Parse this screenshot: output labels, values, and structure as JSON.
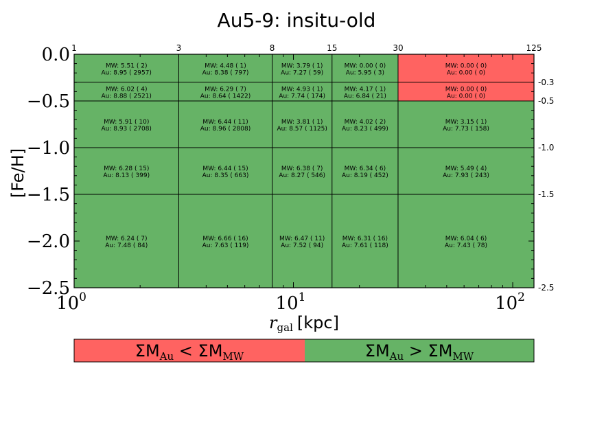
{
  "chart_data": {
    "type": "heatmap",
    "title": "Au5-9:  insitu-old",
    "xlabel_var": "r",
    "xlabel_sub": "gal",
    "xlabel_unit": "[kpc]",
    "ylabel": "[Fe/H]",
    "x_scale": "log",
    "xlim": [
      1,
      125
    ],
    "ylim": [
      -2.5,
      0.0
    ],
    "x_bin_edges": [
      1,
      3,
      8,
      15,
      30,
      125
    ],
    "x_edge_labels": [
      "1",
      "3",
      "8",
      "15",
      "30",
      "125"
    ],
    "y_bin_edges": [
      0.0,
      -0.3,
      -0.5,
      -1.0,
      -1.5,
      -2.5
    ],
    "y_edge_labels": [
      "-0.3",
      "-0.5",
      "-1.0",
      "-1.5",
      "-2.5"
    ],
    "y_ticks": [
      {
        "value": 0.0,
        "label": "0.0"
      },
      {
        "value": -0.5,
        "label": "−0.5"
      },
      {
        "value": -1.0,
        "label": "−1.0"
      },
      {
        "value": -1.5,
        "label": "−1.5"
      },
      {
        "value": -2.0,
        "label": "−2.0"
      },
      {
        "value": -2.5,
        "label": "−2.5"
      }
    ],
    "x_ticks": [
      {
        "value": 1,
        "base": "10",
        "exp": "0"
      },
      {
        "value": 10,
        "base": "10",
        "exp": "1"
      },
      {
        "value": 100,
        "base": "10",
        "exp": "2"
      }
    ],
    "colors": {
      "au_less": "#ff6361",
      "au_greater": "#66b366"
    },
    "cells": [
      [
        {
          "mw": "MW: 5.51 ( 2)",
          "au": "Au: 8.95 ( 2957)",
          "state": "greater"
        },
        {
          "mw": "MW: 4.48 ( 1)",
          "au": "Au: 8.38 ( 797)",
          "state": "greater"
        },
        {
          "mw": "MW: 3.79 ( 1)",
          "au": "Au: 7.27 ( 59)",
          "state": "greater"
        },
        {
          "mw": "MW: 0.00 ( 0)",
          "au": "Au: 5.95 ( 3)",
          "state": "greater"
        },
        {
          "mw": "MW: 0.00 ( 0)",
          "au": "Au: 0.00 ( 0)",
          "state": "less"
        }
      ],
      [
        {
          "mw": "MW: 6.02 ( 4)",
          "au": "Au: 8.88 ( 2521)",
          "state": "greater"
        },
        {
          "mw": "MW: 6.29 ( 7)",
          "au": "Au: 8.64 ( 1422)",
          "state": "greater"
        },
        {
          "mw": "MW: 4.93 ( 1)",
          "au": "Au: 7.74 ( 174)",
          "state": "greater"
        },
        {
          "mw": "MW: 4.17 ( 1)",
          "au": "Au: 6.84 ( 21)",
          "state": "greater"
        },
        {
          "mw": "MW: 0.00 ( 0)",
          "au": "Au: 0.00 ( 0)",
          "state": "less"
        }
      ],
      [
        {
          "mw": "MW: 5.91 ( 10)",
          "au": "Au: 8.93 ( 2708)",
          "state": "greater"
        },
        {
          "mw": "MW: 6.44 ( 11)",
          "au": "Au: 8.96 ( 2808)",
          "state": "greater"
        },
        {
          "mw": "MW: 3.81 ( 1)",
          "au": "Au: 8.57 ( 1125)",
          "state": "greater"
        },
        {
          "mw": "MW: 4.02 ( 2)",
          "au": "Au: 8.23 ( 499)",
          "state": "greater"
        },
        {
          "mw": "MW: 3.15 ( 1)",
          "au": "Au: 7.73 ( 158)",
          "state": "greater"
        }
      ],
      [
        {
          "mw": "MW: 6.28 ( 15)",
          "au": "Au: 8.13 ( 399)",
          "state": "greater"
        },
        {
          "mw": "MW: 6.44 ( 15)",
          "au": "Au: 8.35 ( 663)",
          "state": "greater"
        },
        {
          "mw": "MW: 6.38 ( 7)",
          "au": "Au: 8.27 ( 546)",
          "state": "greater"
        },
        {
          "mw": "MW: 6.34 ( 6)",
          "au": "Au: 8.19 ( 452)",
          "state": "greater"
        },
        {
          "mw": "MW: 5.49 ( 4)",
          "au": "Au: 7.93 ( 243)",
          "state": "greater"
        }
      ],
      [
        {
          "mw": "MW: 6.24 ( 7)",
          "au": "Au: 7.48 ( 84)",
          "state": "greater"
        },
        {
          "mw": "MW: 6.66 ( 16)",
          "au": "Au: 7.63 ( 119)",
          "state": "greater"
        },
        {
          "mw": "MW: 6.47 ( 11)",
          "au": "Au: 7.52 ( 94)",
          "state": "greater"
        },
        {
          "mw": "MW: 6.31 ( 16)",
          "au": "Au: 7.61 ( 118)",
          "state": "greater"
        },
        {
          "mw": "MW: 6.04 ( 6)",
          "au": "Au: 7.43 ( 78)",
          "state": "greater"
        }
      ]
    ],
    "legend": [
      {
        "key": "less",
        "sym": "Σ",
        "m": "M",
        "sub1": "Au",
        "op": "<",
        "sub2": "MW"
      },
      {
        "key": "greater",
        "sym": "Σ",
        "m": "M",
        "sub1": "Au",
        "op": ">",
        "sub2": "MW"
      }
    ]
  }
}
